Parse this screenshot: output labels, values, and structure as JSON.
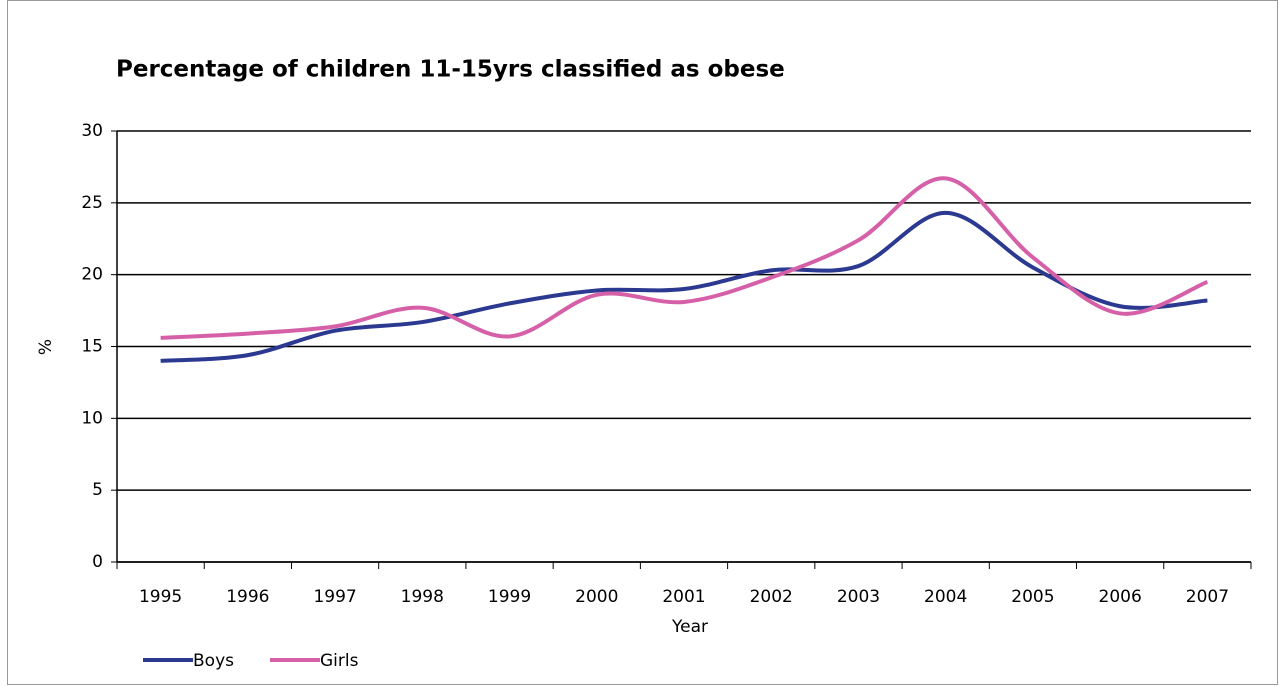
{
  "chart_data": {
    "type": "line",
    "title": "Percentage of children 11-15yrs classified as obese",
    "x_label": "Year",
    "y_label": "%",
    "categories": [
      "1995",
      "1996",
      "1997",
      "1998",
      "1999",
      "2000",
      "2001",
      "2002",
      "2003",
      "2004",
      "2005",
      "2006",
      "2007"
    ],
    "series": [
      {
        "name": "Boys",
        "color": "#2b3990",
        "values": [
          14.0,
          14.4,
          16.1,
          16.7,
          18.0,
          18.9,
          19.0,
          20.3,
          20.6,
          24.3,
          20.5,
          17.8,
          18.2
        ]
      },
      {
        "name": "Girls",
        "color": "#d660a8",
        "values": [
          15.6,
          15.9,
          16.4,
          17.7,
          15.7,
          18.6,
          18.1,
          19.8,
          22.4,
          26.7,
          21.2,
          17.3,
          19.5
        ]
      }
    ],
    "ylim": [
      0,
      30
    ],
    "yticks": [
      0,
      5,
      10,
      15,
      20,
      25,
      30
    ],
    "grid": true,
    "smooth": true,
    "legend": "bottom-left"
  }
}
